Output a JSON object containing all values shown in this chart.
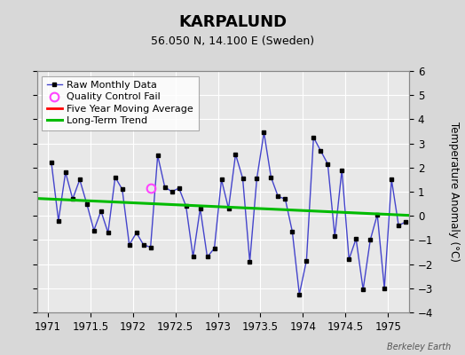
{
  "title": "KARPALUND",
  "subtitle": "56.050 N, 14.100 E (Sweden)",
  "ylabel": "Temperature Anomaly (°C)",
  "watermark": "Berkeley Earth",
  "xlim": [
    1970.875,
    1975.25
  ],
  "ylim": [
    -4,
    6
  ],
  "yticks": [
    -4,
    -3,
    -2,
    -1,
    0,
    1,
    2,
    3,
    4,
    5,
    6
  ],
  "xticks": [
    1971,
    1971.5,
    1972,
    1972.5,
    1973,
    1973.5,
    1974,
    1974.5,
    1975
  ],
  "raw_x": [
    1971.042,
    1971.125,
    1971.208,
    1971.292,
    1971.375,
    1971.458,
    1971.542,
    1971.625,
    1971.708,
    1971.792,
    1971.875,
    1971.958,
    1972.042,
    1972.125,
    1972.208,
    1972.292,
    1972.375,
    1972.458,
    1972.542,
    1972.625,
    1972.708,
    1972.792,
    1972.875,
    1972.958,
    1973.042,
    1973.125,
    1973.208,
    1973.292,
    1973.375,
    1973.458,
    1973.542,
    1973.625,
    1973.708,
    1973.792,
    1973.875,
    1973.958,
    1974.042,
    1974.125,
    1974.208,
    1974.292,
    1974.375,
    1974.458,
    1974.542,
    1974.625,
    1974.708,
    1974.792,
    1974.875,
    1974.958,
    1975.042,
    1975.125,
    1975.208
  ],
  "raw_y": [
    2.2,
    -0.2,
    1.8,
    0.7,
    1.5,
    0.5,
    -0.6,
    0.2,
    -0.7,
    1.6,
    1.1,
    -1.2,
    -0.7,
    -1.2,
    -1.3,
    2.5,
    1.2,
    1.0,
    1.15,
    0.4,
    -1.7,
    0.3,
    -1.7,
    -1.35,
    1.5,
    0.3,
    2.55,
    1.55,
    -1.9,
    1.55,
    3.45,
    1.6,
    0.8,
    0.7,
    -0.65,
    -3.25,
    -1.85,
    3.25,
    2.7,
    2.15,
    -0.85,
    1.9,
    -1.8,
    -0.95,
    -3.05,
    -1.0,
    0.05,
    -3.0,
    1.5,
    -0.4,
    -0.25
  ],
  "qc_fail_x": [
    1972.208
  ],
  "qc_fail_y": [
    1.15
  ],
  "trend_x": [
    1970.875,
    1975.25
  ],
  "trend_y": [
    0.72,
    0.02
  ],
  "moving_avg_x": [],
  "moving_avg_y": [],
  "raw_line_color": "#4444cc",
  "marker_color": "#000000",
  "qc_color": "#ff44ff",
  "moving_avg_color": "#ff0000",
  "trend_color": "#00bb00",
  "background_color": "#d8d8d8",
  "plot_bg_color": "#e8e8e8",
  "grid_color": "#ffffff",
  "title_fontsize": 13,
  "subtitle_fontsize": 9,
  "legend_fontsize": 8,
  "tick_fontsize": 8.5
}
